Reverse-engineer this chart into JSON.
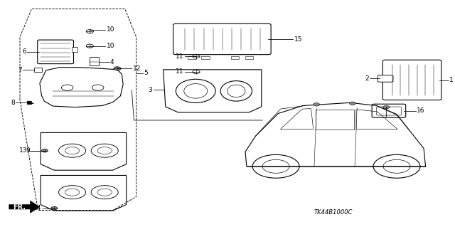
{
  "bg_color": "#ffffff",
  "diagram_code": "TK44B1000C",
  "line_color": "#000000",
  "label_fontsize": 6.5
}
